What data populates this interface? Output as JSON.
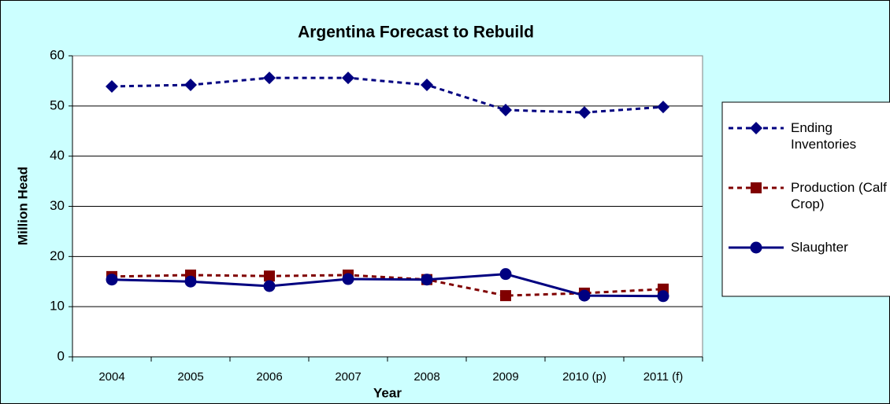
{
  "chart_data": {
    "type": "line",
    "title": "Argentina Forecast to Rebuild",
    "x_label": "Year",
    "y_label": "Million Head",
    "categories": [
      "2004",
      "2005",
      "2006",
      "2007",
      "2008",
      "2009",
      "2010 (p)",
      "2011 (f)"
    ],
    "series": [
      {
        "name": "Ending Inventories",
        "color": "#000080",
        "line_style": "dashed",
        "marker": "diamond",
        "values": [
          53.9,
          54.2,
          55.6,
          55.6,
          54.2,
          49.2,
          48.7,
          49.8
        ]
      },
      {
        "name": "Production (Calf Crop)",
        "color": "#800000",
        "line_style": "dashed",
        "marker": "square",
        "values": [
          16.0,
          16.3,
          16.1,
          16.3,
          15.4,
          12.2,
          12.7,
          13.5
        ]
      },
      {
        "name": "Slaughter",
        "color": "#000080",
        "line_style": "solid",
        "marker": "circle",
        "values": [
          15.4,
          15.0,
          14.1,
          15.5,
          15.4,
          16.5,
          12.2,
          12.1
        ]
      }
    ],
    "ylim": [
      0,
      60
    ],
    "yticks": [
      0,
      10,
      20,
      30,
      40,
      50,
      60
    ],
    "grid": true,
    "legend": "right"
  }
}
